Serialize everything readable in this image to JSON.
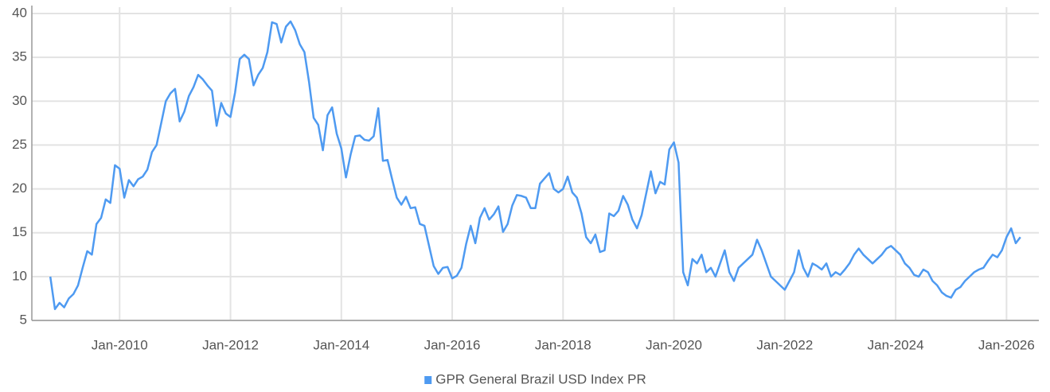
{
  "chart_data": {
    "type": "line",
    "x": [
      "2008-10",
      "2008-11",
      "2008-12",
      "2009-01",
      "2009-02",
      "2009-03",
      "2009-04",
      "2009-05",
      "2009-06",
      "2009-07",
      "2009-08",
      "2009-09",
      "2009-10",
      "2009-11",
      "2009-12",
      "2010-01",
      "2010-02",
      "2010-03",
      "2010-04",
      "2010-05",
      "2010-06",
      "2010-07",
      "2010-08",
      "2010-09",
      "2010-10",
      "2010-11",
      "2010-12",
      "2011-01",
      "2011-02",
      "2011-03",
      "2011-04",
      "2011-05",
      "2011-06",
      "2011-07",
      "2011-08",
      "2011-09",
      "2011-10",
      "2011-11",
      "2011-12",
      "2012-01",
      "2012-02",
      "2012-03",
      "2012-04",
      "2012-05",
      "2012-06",
      "2012-07",
      "2012-08",
      "2012-09",
      "2012-10",
      "2012-11",
      "2012-12",
      "2013-01",
      "2013-02",
      "2013-03",
      "2013-04",
      "2013-05",
      "2013-06",
      "2013-07",
      "2013-08",
      "2013-09",
      "2013-10",
      "2013-11",
      "2013-12",
      "2014-01",
      "2014-02",
      "2014-03",
      "2014-04",
      "2014-05",
      "2014-06",
      "2014-07",
      "2014-08",
      "2014-09",
      "2014-10",
      "2014-11",
      "2014-12",
      "2015-01",
      "2015-02",
      "2015-03",
      "2015-04",
      "2015-05",
      "2015-06",
      "2015-07",
      "2015-08",
      "2015-09",
      "2015-10",
      "2015-11",
      "2015-12",
      "2016-01",
      "2016-02",
      "2016-03",
      "2016-04",
      "2016-05",
      "2016-06",
      "2016-07",
      "2016-08",
      "2016-09",
      "2016-10",
      "2016-11",
      "2016-12",
      "2017-01",
      "2017-02",
      "2017-03",
      "2017-04",
      "2017-05",
      "2017-06",
      "2017-07",
      "2017-08",
      "2017-09",
      "2017-10",
      "2017-11",
      "2017-12",
      "2018-01",
      "2018-02",
      "2018-03",
      "2018-04",
      "2018-05",
      "2018-06",
      "2018-07",
      "2018-08",
      "2018-09",
      "2018-10",
      "2018-11",
      "2018-12",
      "2019-01",
      "2019-02",
      "2019-03",
      "2019-04",
      "2019-05",
      "2019-06",
      "2019-07",
      "2019-08",
      "2019-09",
      "2019-10",
      "2019-11",
      "2019-12",
      "2020-01",
      "2020-02",
      "2020-03",
      "2020-04",
      "2020-05",
      "2020-06",
      "2020-07",
      "2020-08",
      "2020-09",
      "2020-10",
      "2020-11",
      "2020-12",
      "2021-01",
      "2021-02",
      "2021-03",
      "2021-04",
      "2021-05",
      "2021-06",
      "2021-07",
      "2021-08",
      "2021-09",
      "2021-10",
      "2021-11",
      "2021-12",
      "2022-01",
      "2022-02",
      "2022-03",
      "2022-04",
      "2022-05",
      "2022-06",
      "2022-07",
      "2022-08",
      "2022-09",
      "2022-10",
      "2022-11",
      "2022-12",
      "2023-01",
      "2023-02",
      "2023-03",
      "2023-04",
      "2023-05",
      "2023-06",
      "2023-07",
      "2023-08",
      "2023-09",
      "2023-10",
      "2023-11",
      "2023-12",
      "2024-01",
      "2024-02",
      "2024-03",
      "2024-04",
      "2024-05",
      "2024-06",
      "2024-07",
      "2024-08",
      "2024-09",
      "2024-10",
      "2024-11",
      "2024-12",
      "2025-01",
      "2025-02",
      "2025-03",
      "2025-04",
      "2025-05",
      "2025-06",
      "2025-07",
      "2025-08",
      "2025-09",
      "2025-10",
      "2025-11",
      "2025-12",
      "2026-01",
      "2026-02",
      "2026-03",
      "2026-04"
    ],
    "series": [
      {
        "name": "GPR General Brazil USD Index PR",
        "color": "#4e9af1",
        "values": [
          10,
          6.3,
          7,
          6.5,
          7.5,
          8,
          9,
          11,
          12.9,
          12.5,
          16,
          16.7,
          18.8,
          18.4,
          22.7,
          22.3,
          19,
          21,
          20.3,
          21.1,
          21.4,
          22.2,
          24.2,
          25,
          27.5,
          30,
          30.9,
          31.4,
          27.7,
          28.8,
          30.6,
          31.6,
          33,
          32.5,
          31.8,
          31.2,
          27.2,
          29.8,
          28.6,
          28.2,
          31,
          34.8,
          35.3,
          34.8,
          31.8,
          33,
          33.8,
          35.6,
          39,
          38.8,
          36.7,
          38.5,
          39.1,
          38.1,
          36.5,
          35.6,
          32.2,
          28.1,
          27.3,
          24.4,
          28.4,
          29.3,
          26.3,
          24.6,
          21.3,
          23.9,
          26,
          26.1,
          25.6,
          25.5,
          26,
          29.2,
          23.2,
          23.3,
          21.1,
          19,
          18.2,
          19.1,
          17.8,
          17.9,
          16,
          15.8,
          13.5,
          11.2,
          10.3,
          11,
          11.1,
          9.8,
          10.1,
          11,
          13.7,
          15.8,
          13.8,
          16.7,
          17.8,
          16.5,
          17.1,
          18,
          15.1,
          16,
          18.1,
          19.3,
          19.2,
          19,
          17.8,
          17.8,
          20.6,
          21.2,
          21.8,
          20,
          19.6,
          20,
          21.4,
          19.6,
          19,
          17.2,
          14.5,
          13.8,
          14.8,
          12.8,
          13,
          17.2,
          16.9,
          17.5,
          19.2,
          18.2,
          16.5,
          15.5,
          17,
          19.5,
          22,
          19.5,
          20.8,
          20.5,
          24.5,
          25.3,
          23,
          10.5,
          9,
          12,
          11.5,
          12.5,
          10.5,
          11,
          10,
          11.5,
          13,
          10.5,
          9.5,
          11,
          11.5,
          12,
          12.5,
          14.2,
          13,
          11.5,
          10,
          9.5,
          9,
          8.5,
          9.5,
          10.5,
          13,
          11,
          10,
          11.5,
          11.2,
          10.8,
          11.5,
          10,
          10.5,
          10.2,
          10.8,
          11.5,
          12.5,
          13.2,
          12.5,
          12,
          11.5,
          12,
          12.5,
          13.2,
          13.5,
          13,
          12.5,
          11.5,
          11,
          10.2,
          10,
          10.8,
          10.5,
          9.5,
          9,
          8.2,
          7.8,
          7.6,
          8.5,
          8.8,
          9.5,
          10,
          10.5,
          10.8,
          11,
          11.8,
          12.5,
          12.2,
          13,
          14.5,
          15.5,
          13.8,
          14.5
        ]
      }
    ],
    "xlim": [
      "2008-06",
      "2026-08"
    ],
    "xticks": [
      {
        "value": "2010-01",
        "label": "Jan-2010"
      },
      {
        "value": "2012-01",
        "label": "Jan-2012"
      },
      {
        "value": "2014-01",
        "label": "Jan-2014"
      },
      {
        "value": "2016-01",
        "label": "Jan-2016"
      },
      {
        "value": "2018-01",
        "label": "Jan-2018"
      },
      {
        "value": "2020-01",
        "label": "Jan-2020"
      },
      {
        "value": "2022-01",
        "label": "Jan-2022"
      },
      {
        "value": "2024-01",
        "label": "Jan-2024"
      },
      {
        "value": "2026-01",
        "label": "Jan-2026"
      }
    ],
    "ylim": [
      5,
      40
    ],
    "yticks": [
      5,
      10,
      15,
      20,
      25,
      30,
      35,
      40
    ],
    "grid": true,
    "legend": "bottom"
  }
}
